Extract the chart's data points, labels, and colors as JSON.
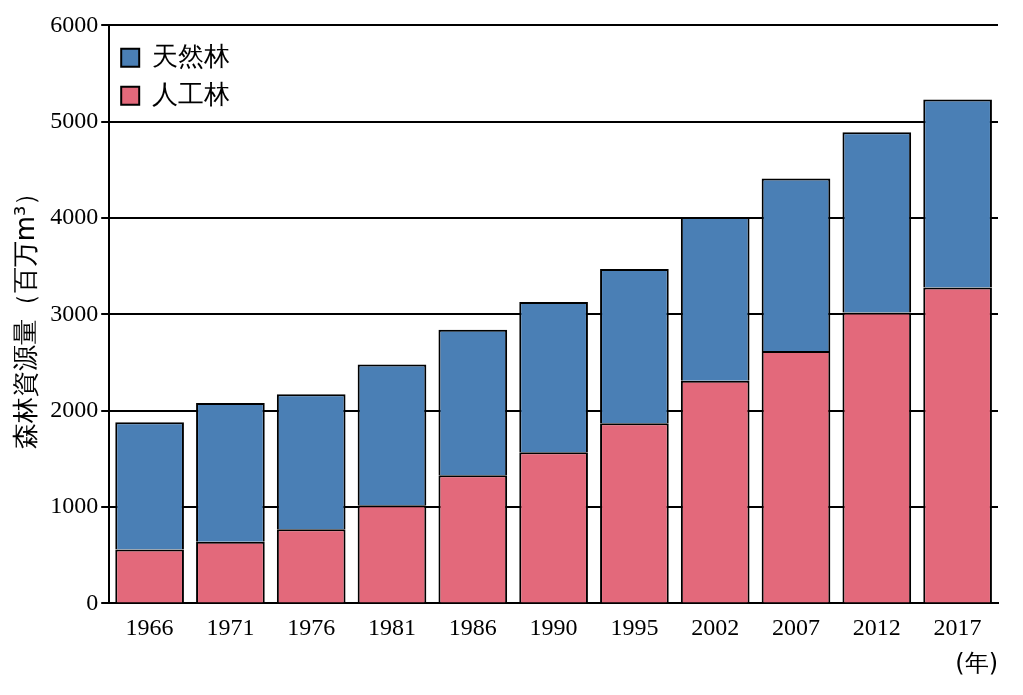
{
  "chart_data": {
    "type": "bar",
    "stacked": true,
    "ylabel": "森林資源量（百万m³）",
    "xlabel": "(年)",
    "categories": [
      "1966",
      "1971",
      "1976",
      "1981",
      "1986",
      "1990",
      "1995",
      "2002",
      "2007",
      "2012",
      "2017"
    ],
    "series": [
      {
        "name": "人工林",
        "color": "#e3697b",
        "values": [
          560,
          640,
          770,
          1020,
          1330,
          1570,
          1870,
          2310,
          2620,
          3020,
          3280
        ]
      },
      {
        "name": "天然林",
        "color": "#4a7fb5",
        "values": [
          1320,
          1440,
          1400,
          1460,
          1510,
          1560,
          1600,
          1700,
          1790,
          1870,
          1950
        ]
      }
    ],
    "ylim": [
      0,
      6000
    ],
    "yticks": [
      0,
      1000,
      2000,
      3000,
      4000,
      5000,
      6000
    ],
    "grid": "y",
    "legend": "top left"
  }
}
